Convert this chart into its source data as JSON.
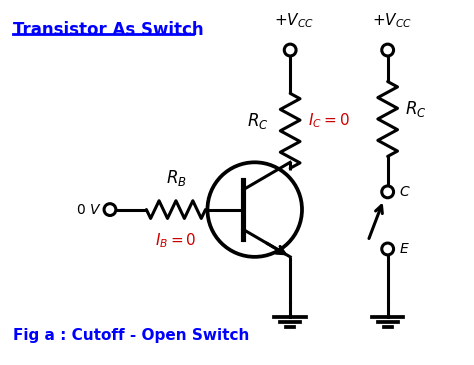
{
  "title": "Transistor As Switch",
  "fig_label": "Fig a : Cutoff - Open Switch",
  "bg_color": "#ffffff",
  "title_color": "#0000ff",
  "red_color": "#cc0000",
  "black_color": "#000000"
}
